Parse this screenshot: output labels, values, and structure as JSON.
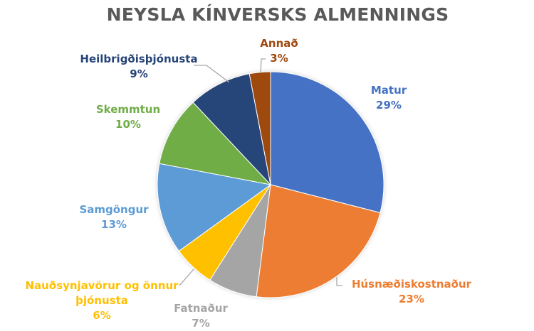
{
  "chart_data": {
    "type": "pie",
    "title": "NEYSLA KÍNVERSKS ALMENNINGS",
    "categories": [
      "Matur",
      "Húsnæðiskostnaður",
      "Fatnaður",
      "Nauðsynjavörur og önnur þjónusta",
      "Samgöngur",
      "Skemmtun",
      "Heilbrigðisþjónusta",
      "Annað"
    ],
    "values": [
      29,
      23,
      7,
      6,
      13,
      10,
      9,
      3
    ],
    "unit": "%",
    "colors": [
      "#4472C4",
      "#ED7D31",
      "#A5A5A5",
      "#FFC000",
      "#5B9BD5",
      "#70AD47",
      "#264478",
      "#9E480E"
    ],
    "start_angle_deg": 0,
    "direction": "clockwise",
    "legend": "none (data labels with category name and percentage)"
  },
  "labels": [
    {
      "name": "Matur",
      "pct": "29%"
    },
    {
      "name": "Húsnæðiskostnaður",
      "pct": "23%"
    },
    {
      "name": "Fatnaður",
      "pct": "7%"
    },
    {
      "name_line1": "Nauðsynjavörur og önnur",
      "name_line2": "þjónusta",
      "pct": "6%"
    },
    {
      "name": "Samgöngur",
      "pct": "13%"
    },
    {
      "name": "Skemmtun",
      "pct": "10%"
    },
    {
      "name": "Heilbrigðisþjónusta",
      "pct": "9%"
    },
    {
      "name": "Annað",
      "pct": "3%"
    }
  ]
}
